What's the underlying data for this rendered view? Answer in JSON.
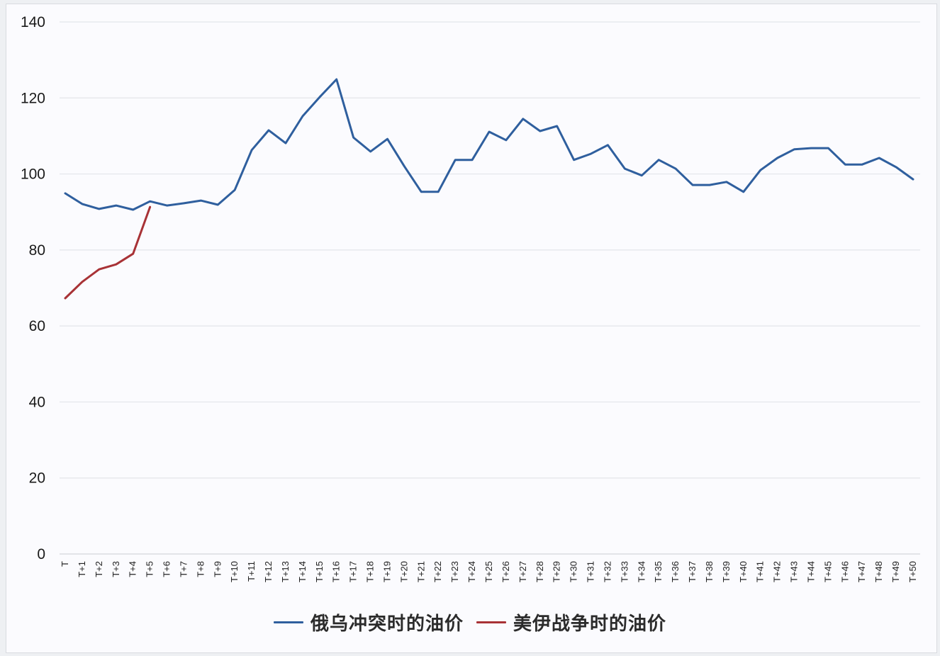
{
  "chart_data": {
    "type": "line",
    "title": "",
    "xlabel": "",
    "ylabel": "",
    "ylim": [
      0,
      140
    ],
    "yticks": [
      0,
      20,
      40,
      60,
      80,
      100,
      120,
      140
    ],
    "grid": true,
    "legend_position": "bottom",
    "categories": [
      "T",
      "T+1",
      "T+2",
      "T+3",
      "T+4",
      "T+5",
      "T+6",
      "T+7",
      "T+8",
      "T+9",
      "T+10",
      "T+11",
      "T+12",
      "T+13",
      "T+14",
      "T+15",
      "T+16",
      "T+17",
      "T+18",
      "T+19",
      "T+20",
      "T+21",
      "T+22",
      "T+23",
      "T+24",
      "T+25",
      "T+26",
      "T+27",
      "T+28",
      "T+29",
      "T+30",
      "T+31",
      "T+32",
      "T+33",
      "T+34",
      "T+35",
      "T+36",
      "T+37",
      "T+38",
      "T+39",
      "T+40",
      "T+41",
      "T+42",
      "T+43",
      "T+44",
      "T+45",
      "T+46",
      "T+47",
      "T+48",
      "T+49",
      "T+50"
    ],
    "series": [
      {
        "name": "俄乌冲突时的油价",
        "color": "#2f5f9e",
        "values": [
          94.9,
          92.1,
          90.8,
          91.7,
          90.6,
          92.8,
          91.7,
          92.3,
          93.0,
          91.9,
          95.8,
          106.3,
          111.5,
          108.1,
          115.2,
          120.2,
          124.9,
          109.6,
          105.9,
          109.2,
          102.0,
          95.3,
          95.3,
          103.7,
          103.7,
          111.1,
          108.9,
          114.5,
          111.3,
          112.6,
          103.7,
          105.3,
          107.6,
          101.4,
          99.6,
          103.7,
          101.4,
          97.1,
          97.1,
          97.9,
          95.3,
          101.0,
          104.2,
          106.5,
          106.8,
          106.8,
          102.5,
          102.5,
          104.2,
          101.8,
          98.6
        ]
      },
      {
        "name": "美伊战争时的油价",
        "color": "#a83236",
        "values": [
          67.3,
          71.6,
          74.9,
          76.2,
          79.0,
          91.3
        ]
      }
    ]
  },
  "legend": {
    "items": [
      {
        "label": "俄乌冲突时的油价",
        "color": "#2f5f9e"
      },
      {
        "label": "美伊战争时的油价",
        "color": "#a83236"
      }
    ]
  }
}
